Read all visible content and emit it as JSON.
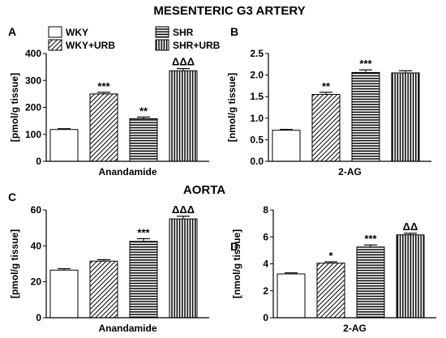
{
  "figure_title": "MESENTERIC G3 ARTERY",
  "section_title": "AORTA",
  "legend": {
    "items": [
      {
        "label": "WKY",
        "pattern": "white"
      },
      {
        "label": "SHR",
        "pattern": "horizontal"
      },
      {
        "label": "WKY+URB",
        "pattern": "diagonal"
      },
      {
        "label": "SHR+URB",
        "pattern": "vertical"
      }
    ]
  },
  "chart_data": [
    {
      "panel": "A",
      "type": "bar",
      "xlabel": "Anandamide",
      "ylabel": "[pmol/g tissue]",
      "ylim": [
        0,
        400
      ],
      "yticks": [
        0,
        100,
        200,
        300,
        400
      ],
      "categories": [
        "WKY",
        "WKY+URB",
        "SHR",
        "SHR+URB"
      ],
      "values": [
        118,
        250,
        158,
        336
      ],
      "errors": [
        3,
        6,
        6,
        8
      ],
      "annotations": [
        "",
        "***",
        "**",
        "ΔΔΔ"
      ]
    },
    {
      "panel": "B",
      "type": "bar",
      "xlabel": "2-AG",
      "ylabel": "[nmol/g tissue]",
      "ylim": [
        0,
        2.5
      ],
      "yticks": [
        "0.0",
        "0.5",
        "1.0",
        "1.5",
        "2.0",
        "2.5"
      ],
      "categories": [
        "WKY",
        "WKY+URB",
        "SHR",
        "SHR+URB"
      ],
      "values": [
        0.72,
        1.55,
        2.06,
        2.05
      ],
      "errors": [
        0.02,
        0.05,
        0.06,
        0.05
      ],
      "annotations": [
        "",
        "**",
        "***",
        ""
      ]
    },
    {
      "panel": "C",
      "type": "bar",
      "xlabel": "Anandamide",
      "ylabel": "[pmol/g tissue]",
      "ylim": [
        0,
        60
      ],
      "yticks": [
        0,
        20,
        40,
        60
      ],
      "categories": [
        "WKY",
        "WKY+URB",
        "SHR",
        "SHR+URB"
      ],
      "values": [
        26.5,
        31.5,
        42.5,
        55
      ],
      "errors": [
        0.8,
        0.8,
        1.5,
        1.5
      ],
      "annotations": [
        "",
        "",
        "***",
        "ΔΔΔ"
      ]
    },
    {
      "panel": "D",
      "type": "bar",
      "xlabel": "2-AG",
      "ylabel": "[nmol/g tissue]",
      "ylim": [
        0,
        8
      ],
      "yticks": [
        0,
        2,
        4,
        6,
        8
      ],
      "categories": [
        "WKY",
        "WKY+URB",
        "SHR",
        "SHR+URB"
      ],
      "values": [
        3.25,
        4.05,
        5.25,
        6.15
      ],
      "errors": [
        0.08,
        0.1,
        0.15,
        0.12
      ],
      "annotations": [
        "",
        "*",
        "***",
        "ΔΔ"
      ]
    }
  ]
}
